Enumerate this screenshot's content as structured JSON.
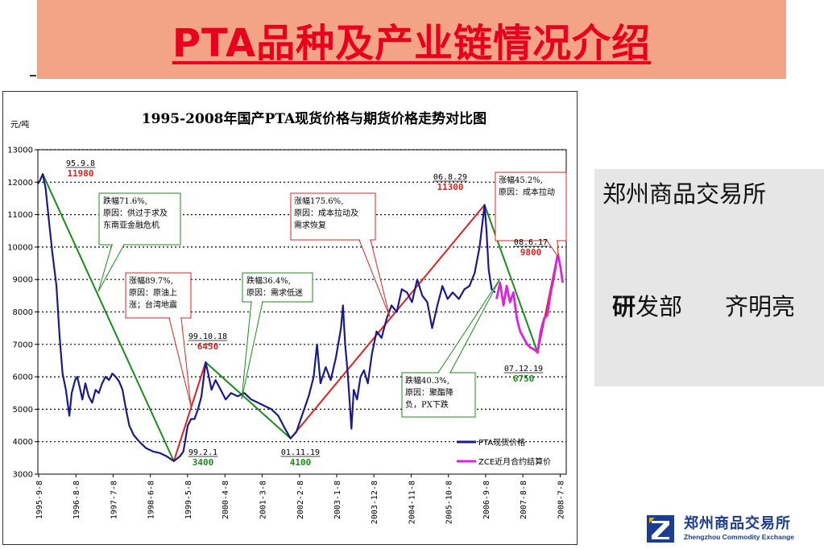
{
  "slide": {
    "title": "PTA品种及产业链情况介绍",
    "org_name": "郑州商品交易所",
    "dept_first_char": "研",
    "dept_rest": "发部",
    "author": "齐明亮",
    "logo_cn": "郑州商品交易所",
    "logo_en": "Zhengzhou Commodity Exchange"
  },
  "chart_data": {
    "type": "line",
    "title": "1995-2008年国产PTA现货价格与期货价格走势对比图",
    "ylabel": "元/吨",
    "ylim": [
      3000,
      13000
    ],
    "yticks": [
      3000,
      4000,
      5000,
      6000,
      7000,
      8000,
      9000,
      10000,
      11000,
      12000,
      13000
    ],
    "ytick_labels": [
      "3000",
      "4000",
      "5000",
      "6000",
      "7000",
      "8000",
      "9000",
      "10000",
      "11000",
      "12000",
      "13000"
    ],
    "grid": "dotted-horizontal",
    "xlim": [
      "1995-09",
      "2008-09"
    ],
    "x_ticks": [
      "1995-9-8",
      "1996-8-8",
      "1997-7-8",
      "1998-6-8",
      "1999-5-8",
      "2000-4-8",
      "2001-3-8",
      "2002-2-8",
      "2003-1-8",
      "2003-12-8",
      "2004-11-8",
      "2005-10-8",
      "2006-9-8",
      "2007-8-8",
      "2008-7-8"
    ],
    "x_tick_dates": [
      "1995-09-08",
      "1996-08-08",
      "1997-07-08",
      "1998-06-08",
      "1999-05-08",
      "2000-04-08",
      "2001-03-08",
      "2002-02-08",
      "2003-01-08",
      "2003-12-08",
      "2004-11-08",
      "2005-10-08",
      "2006-09-08",
      "2007-08-08",
      "2008-07-08"
    ],
    "legend_position": "bottom-right",
    "series": [
      {
        "name": "PTA现货价格",
        "color": "#1a1a8c",
        "points": [
          [
            "1995-09-01",
            11950
          ],
          [
            "1995-09-20",
            12050
          ],
          [
            "1995-10-15",
            12250
          ],
          [
            "1995-11-10",
            11800
          ],
          [
            "1995-12-10",
            10800
          ],
          [
            "1996-01-10",
            9800
          ],
          [
            "1996-02-15",
            8800
          ],
          [
            "1996-03-15",
            7200
          ],
          [
            "1996-04-10",
            6100
          ],
          [
            "1996-05-10",
            5600
          ],
          [
            "1996-06-10",
            4800
          ],
          [
            "1996-07-01",
            5500
          ],
          [
            "1996-08-01",
            5900
          ],
          [
            "1996-08-20",
            6000
          ],
          [
            "1996-09-10",
            5700
          ],
          [
            "1996-10-05",
            5300
          ],
          [
            "1996-11-01",
            5800
          ],
          [
            "1996-12-01",
            5400
          ],
          [
            "1997-01-01",
            5200
          ],
          [
            "1997-02-01",
            5600
          ],
          [
            "1997-03-01",
            5500
          ],
          [
            "1997-04-01",
            5800
          ],
          [
            "1997-05-01",
            6000
          ],
          [
            "1997-06-01",
            5900
          ],
          [
            "1997-07-01",
            6100
          ],
          [
            "1997-08-01",
            6000
          ],
          [
            "1997-09-01",
            5850
          ],
          [
            "1997-10-01",
            5600
          ],
          [
            "1997-11-01",
            5000
          ],
          [
            "1997-12-01",
            4500
          ],
          [
            "1998-01-10",
            4200
          ],
          [
            "1998-03-01",
            4000
          ],
          [
            "1998-05-01",
            3800
          ],
          [
            "1998-07-01",
            3700
          ],
          [
            "1998-09-01",
            3650
          ],
          [
            "1998-11-01",
            3550
          ],
          [
            "1999-01-05",
            3400
          ],
          [
            "1999-03-01",
            3550
          ],
          [
            "1999-04-01",
            3700
          ],
          [
            "1999-05-10",
            4500
          ],
          [
            "1999-06-10",
            4700
          ],
          [
            "1999-07-10",
            4700
          ],
          [
            "1999-08-10",
            5000
          ],
          [
            "1999-09-10",
            5400
          ],
          [
            "1999-10-18",
            6450
          ],
          [
            "1999-11-10",
            6100
          ],
          [
            "1999-12-10",
            5600
          ],
          [
            "2000-01-15",
            5900
          ],
          [
            "2000-03-01",
            5600
          ],
          [
            "2000-04-15",
            5300
          ],
          [
            "2000-06-01",
            5500
          ],
          [
            "2000-08-01",
            5400
          ],
          [
            "2000-10-01",
            5500
          ],
          [
            "2000-12-01",
            5300
          ],
          [
            "2001-02-01",
            5200
          ],
          [
            "2001-04-01",
            5100
          ],
          [
            "2001-06-01",
            5000
          ],
          [
            "2001-08-01",
            4800
          ],
          [
            "2001-10-01",
            4400
          ],
          [
            "2001-11-19",
            4100
          ],
          [
            "2002-01-10",
            4300
          ],
          [
            "2002-03-01",
            4800
          ],
          [
            "2002-05-01",
            5400
          ],
          [
            "2002-06-15",
            6000
          ],
          [
            "2002-07-15",
            7000
          ],
          [
            "2002-08-15",
            5800
          ],
          [
            "2002-10-01",
            6300
          ],
          [
            "2002-11-15",
            5900
          ],
          [
            "2003-01-01",
            6600
          ],
          [
            "2003-02-15",
            7500
          ],
          [
            "2003-03-05",
            8200
          ],
          [
            "2003-03-25",
            7000
          ],
          [
            "2003-04-15",
            6200
          ],
          [
            "2003-05-05",
            5200
          ],
          [
            "2003-05-20",
            4400
          ],
          [
            "2003-06-10",
            5600
          ],
          [
            "2003-07-10",
            5300
          ],
          [
            "2003-08-10",
            6000
          ],
          [
            "2003-09-10",
            6200
          ],
          [
            "2003-10-15",
            5800
          ],
          [
            "2003-11-20",
            6700
          ],
          [
            "2004-01-01",
            7400
          ],
          [
            "2004-02-15",
            7200
          ],
          [
            "2004-04-01",
            7800
          ],
          [
            "2004-05-15",
            8200
          ],
          [
            "2004-07-01",
            8000
          ],
          [
            "2004-08-15",
            8700
          ],
          [
            "2004-10-01",
            8600
          ],
          [
            "2004-11-15",
            8300
          ],
          [
            "2005-01-01",
            9000
          ],
          [
            "2005-02-15",
            8500
          ],
          [
            "2005-04-01",
            8300
          ],
          [
            "2005-05-15",
            7500
          ],
          [
            "2005-07-01",
            8200
          ],
          [
            "2005-08-15",
            8800
          ],
          [
            "2005-10-01",
            8400
          ],
          [
            "2005-11-15",
            8600
          ],
          [
            "2006-01-10",
            8400
          ],
          [
            "2006-03-01",
            8700
          ],
          [
            "2006-04-15",
            8800
          ],
          [
            "2006-06-01",
            9200
          ],
          [
            "2006-07-15",
            10000
          ],
          [
            "2006-08-29",
            11300
          ],
          [
            "2006-09-15",
            10500
          ],
          [
            "2006-10-05",
            9300
          ],
          [
            "2006-11-01",
            8700
          ],
          [
            "2006-12-01",
            8600
          ]
        ]
      },
      {
        "name": "ZCE近月合约结算价",
        "color": "#e020e0",
        "points": [
          [
            "2006-12-15",
            8400
          ],
          [
            "2007-01-15",
            8900
          ],
          [
            "2007-02-15",
            8200
          ],
          [
            "2007-03-15",
            8800
          ],
          [
            "2007-04-15",
            8300
          ],
          [
            "2007-05-15",
            8600
          ],
          [
            "2007-06-15",
            7800
          ],
          [
            "2007-07-15",
            7400
          ],
          [
            "2007-08-15",
            7200
          ],
          [
            "2007-09-15",
            7000
          ],
          [
            "2007-10-15",
            6900
          ],
          [
            "2007-11-15",
            6850
          ],
          [
            "2007-12-19",
            6750
          ],
          [
            "2008-01-15",
            7400
          ],
          [
            "2008-02-15",
            7800
          ],
          [
            "2008-03-15",
            7900
          ],
          [
            "2008-04-15",
            8600
          ],
          [
            "2008-05-15",
            9100
          ],
          [
            "2008-06-17",
            9800
          ],
          [
            "2008-07-10",
            9400
          ],
          [
            "2008-07-31",
            8900
          ]
        ]
      }
    ],
    "trend_lines": [
      {
        "color": "#1a8c1a",
        "from": [
          "1995-10-15",
          12250
        ],
        "to": [
          "1999-01-05",
          3400
        ]
      },
      {
        "color": "#e02020",
        "from": [
          "1999-01-05",
          3400
        ],
        "to": [
          "1999-10-18",
          6450
        ]
      },
      {
        "color": "#1a8c1a",
        "from": [
          "1999-10-18",
          6450
        ],
        "to": [
          "2001-11-19",
          4100
        ]
      },
      {
        "color": "#e02020",
        "from": [
          "2001-11-19",
          4100
        ],
        "to": [
          "2006-08-29",
          11300
        ]
      },
      {
        "color": "#1a8c1a",
        "from": [
          "2006-08-29",
          11300
        ],
        "to": [
          "2007-12-19",
          6750
        ]
      },
      {
        "color": "#e02020",
        "from": [
          "2007-12-19",
          6750
        ],
        "to": [
          "2008-06-17",
          9800
        ]
      }
    ],
    "point_labels": [
      {
        "date": "95.9.8",
        "value": "11980"
      },
      {
        "date": "99.2.1",
        "value": "3400"
      },
      {
        "date": "99.10.18",
        "value": "6450"
      },
      {
        "date": "01.11.19",
        "value": "4100"
      },
      {
        "date": "06.8.29",
        "value": "11300"
      },
      {
        "date": "08.6.17",
        "value": "9800"
      },
      {
        "date": "07.12.19",
        "value": "6750"
      }
    ],
    "annotations": [
      {
        "lines": [
          "跌幅71.6%,",
          "原因：供过于求及",
          "东南亚金融危机"
        ]
      },
      {
        "lines": [
          "涨幅89.7%,",
          "原因：原油上",
          "涨；台湾地震"
        ]
      },
      {
        "lines": [
          "跌幅36.4%,",
          "原因：需求低迷"
        ]
      },
      {
        "lines": [
          "涨幅175.6%,",
          "原因：成本拉动及",
          "需求恢复"
        ]
      },
      {
        "lines": [
          "跌幅40.3%,",
          "原因：聚酯降",
          "负，PX下跌"
        ]
      },
      {
        "lines": [
          "涨幅45.2%,",
          "原因：成本拉动"
        ]
      }
    ]
  }
}
